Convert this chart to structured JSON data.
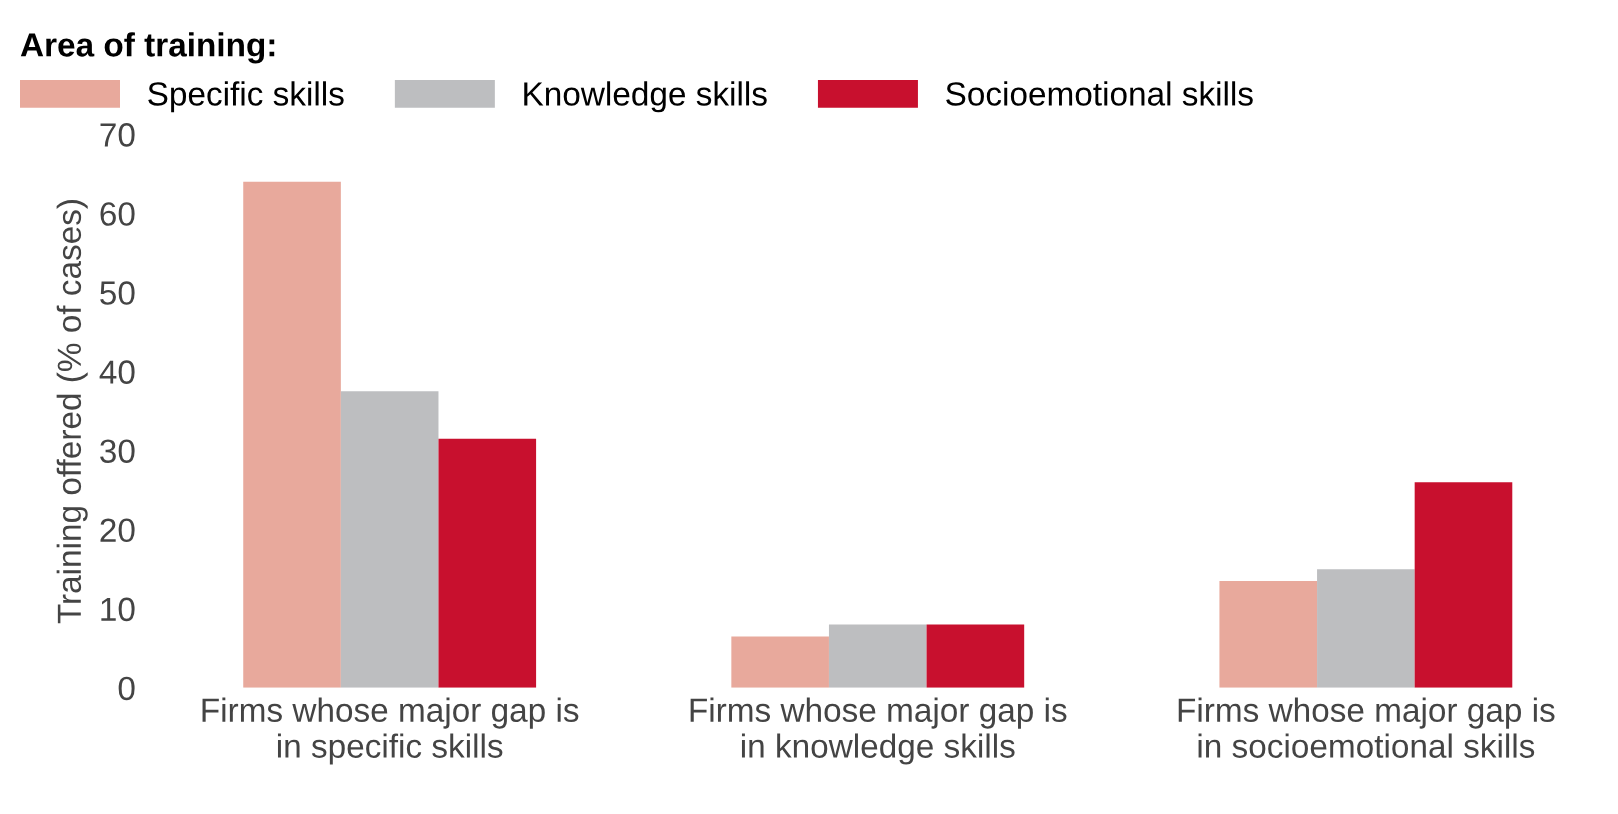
{
  "chart_data": {
    "type": "bar",
    "legend_title": "Area of training:",
    "ylabel": "Training offered (% of cases)",
    "categories": [
      "Firms whose major gap is\nin specific skills",
      "Firms whose major gap is\nin knowledge skills",
      "Firms whose major gap is\nin socioemotional skills"
    ],
    "series": [
      {
        "name": "Specific skills",
        "color": "#e8a99c",
        "values": [
          64,
          6.5,
          13.5
        ]
      },
      {
        "name": "Knowledge skills",
        "color": "#bdbec0",
        "values": [
          37.5,
          8,
          15
        ]
      },
      {
        "name": "Socioemotional skills",
        "color": "#c8102e",
        "values": [
          31.5,
          8,
          26
        ]
      }
    ],
    "ylim": [
      0,
      70
    ],
    "yticks": [
      0,
      10,
      20,
      30,
      40,
      50,
      60,
      70
    ],
    "grid": false,
    "legend": "top left"
  }
}
